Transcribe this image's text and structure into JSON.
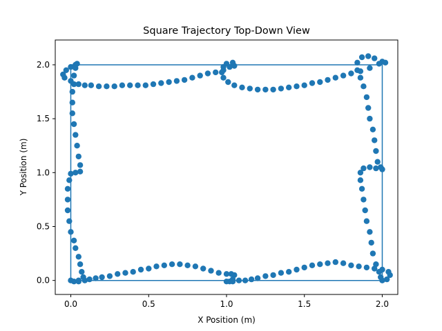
{
  "chart_data": {
    "type": "scatter",
    "title": "Square Trajectory Top-Down View",
    "xlabel": "X Position (m)",
    "ylabel": "Y Position (m)",
    "xlim": [
      -0.1,
      2.1
    ],
    "ylim": [
      -0.13,
      2.23
    ],
    "xticks": [
      "0.0",
      "0.5",
      "1.0",
      "1.5",
      "2.0"
    ],
    "yticks": [
      "0.0",
      "0.5",
      "1.0",
      "1.5",
      "2.0"
    ],
    "grid": false,
    "legend": "none",
    "colors": {
      "series": "#1f77b4",
      "axes": "#000000",
      "background": "#ffffff"
    },
    "reference_path": {
      "x": [
        0,
        2,
        2,
        0,
        0
      ],
      "y": [
        0,
        0,
        2,
        2,
        0
      ]
    },
    "points": [
      [
        0.0,
        0.0
      ],
      [
        0.02,
        -0.01
      ],
      [
        0.05,
        -0.01
      ],
      [
        0.09,
        0.0
      ],
      [
        0.12,
        0.01
      ],
      [
        0.16,
        0.02
      ],
      [
        0.2,
        0.03
      ],
      [
        0.25,
        0.04
      ],
      [
        0.3,
        0.06
      ],
      [
        0.35,
        0.07
      ],
      [
        0.4,
        0.08
      ],
      [
        0.45,
        0.1
      ],
      [
        0.5,
        0.11
      ],
      [
        0.55,
        0.13
      ],
      [
        0.6,
        0.14
      ],
      [
        0.65,
        0.15
      ],
      [
        0.7,
        0.15
      ],
      [
        0.75,
        0.14
      ],
      [
        0.8,
        0.13
      ],
      [
        0.85,
        0.11
      ],
      [
        0.9,
        0.09
      ],
      [
        0.95,
        0.07
      ],
      [
        1.0,
        0.06
      ],
      [
        1.03,
        0.06
      ],
      [
        1.05,
        0.05
      ],
      [
        1.04,
        0.01
      ],
      [
        1.02,
        -0.01
      ],
      [
        1.0,
        -0.01
      ],
      [
        1.04,
        -0.01
      ],
      [
        1.08,
        0.0
      ],
      [
        1.12,
        0.0
      ],
      [
        1.16,
        0.01
      ],
      [
        1.2,
        0.02
      ],
      [
        1.25,
        0.04
      ],
      [
        1.3,
        0.05
      ],
      [
        1.35,
        0.07
      ],
      [
        1.4,
        0.08
      ],
      [
        1.45,
        0.1
      ],
      [
        1.5,
        0.12
      ],
      [
        1.55,
        0.14
      ],
      [
        1.6,
        0.15
      ],
      [
        1.65,
        0.16
      ],
      [
        1.7,
        0.17
      ],
      [
        1.75,
        0.16
      ],
      [
        1.8,
        0.14
      ],
      [
        1.85,
        0.13
      ],
      [
        1.9,
        0.12
      ],
      [
        1.95,
        0.11
      ],
      [
        2.0,
        0.1
      ],
      [
        2.04,
        0.08
      ],
      [
        2.05,
        0.05
      ],
      [
        2.03,
        0.01
      ],
      [
        2.0,
        0.0
      ],
      [
        1.99,
        0.03
      ],
      [
        1.98,
        0.08
      ],
      [
        1.96,
        0.15
      ],
      [
        1.94,
        0.25
      ],
      [
        1.93,
        0.35
      ],
      [
        1.92,
        0.45
      ],
      [
        1.9,
        0.55
      ],
      [
        1.89,
        0.65
      ],
      [
        1.88,
        0.75
      ],
      [
        1.87,
        0.85
      ],
      [
        1.86,
        0.93
      ],
      [
        1.86,
        1.0
      ],
      [
        1.88,
        1.04
      ],
      [
        1.92,
        1.05
      ],
      [
        1.96,
        1.04
      ],
      [
        2.0,
        1.03
      ],
      [
        1.99,
        1.05
      ],
      [
        1.97,
        1.1
      ],
      [
        1.96,
        1.2
      ],
      [
        1.95,
        1.3
      ],
      [
        1.94,
        1.4
      ],
      [
        1.92,
        1.5
      ],
      [
        1.91,
        1.6
      ],
      [
        1.9,
        1.7
      ],
      [
        1.88,
        1.8
      ],
      [
        1.86,
        1.88
      ],
      [
        1.84,
        1.95
      ],
      [
        1.84,
        2.02
      ],
      [
        1.87,
        2.07
      ],
      [
        1.91,
        2.08
      ],
      [
        1.95,
        2.06
      ],
      [
        2.0,
        2.03
      ],
      [
        2.02,
        2.02
      ],
      [
        1.98,
        2.01
      ],
      [
        1.92,
        1.97
      ],
      [
        1.86,
        1.94
      ],
      [
        1.8,
        1.92
      ],
      [
        1.75,
        1.9
      ],
      [
        1.7,
        1.88
      ],
      [
        1.65,
        1.86
      ],
      [
        1.6,
        1.84
      ],
      [
        1.55,
        1.83
      ],
      [
        1.5,
        1.81
      ],
      [
        1.45,
        1.8
      ],
      [
        1.4,
        1.79
      ],
      [
        1.35,
        1.78
      ],
      [
        1.3,
        1.77
      ],
      [
        1.25,
        1.77
      ],
      [
        1.2,
        1.77
      ],
      [
        1.15,
        1.78
      ],
      [
        1.1,
        1.79
      ],
      [
        1.05,
        1.81
      ],
      [
        1.01,
        1.84
      ],
      [
        0.98,
        1.88
      ],
      [
        0.97,
        1.93
      ],
      [
        0.98,
        1.98
      ],
      [
        1.0,
        2.01
      ],
      [
        1.04,
        2.02
      ],
      [
        1.05,
        1.99
      ],
      [
        1.02,
        1.98
      ],
      [
        0.98,
        1.95
      ],
      [
        0.93,
        1.93
      ],
      [
        0.88,
        1.92
      ],
      [
        0.83,
        1.9
      ],
      [
        0.78,
        1.88
      ],
      [
        0.73,
        1.86
      ],
      [
        0.68,
        1.85
      ],
      [
        0.63,
        1.84
      ],
      [
        0.58,
        1.83
      ],
      [
        0.53,
        1.82
      ],
      [
        0.48,
        1.81
      ],
      [
        0.43,
        1.81
      ],
      [
        0.38,
        1.81
      ],
      [
        0.33,
        1.81
      ],
      [
        0.28,
        1.8
      ],
      [
        0.23,
        1.8
      ],
      [
        0.18,
        1.8
      ],
      [
        0.13,
        1.81
      ],
      [
        0.09,
        1.81
      ],
      [
        0.05,
        1.82
      ],
      [
        0.0,
        1.85
      ],
      [
        -0.04,
        1.88
      ],
      [
        -0.05,
        1.91
      ],
      [
        -0.03,
        1.95
      ],
      [
        0.0,
        1.98
      ],
      [
        0.03,
        2.0
      ],
      [
        0.04,
        2.01
      ],
      [
        0.03,
        1.97
      ],
      [
        0.02,
        1.9
      ],
      [
        0.02,
        1.82
      ],
      [
        0.01,
        1.75
      ],
      [
        0.01,
        1.65
      ],
      [
        0.01,
        1.55
      ],
      [
        0.02,
        1.45
      ],
      [
        0.03,
        1.35
      ],
      [
        0.04,
        1.25
      ],
      [
        0.05,
        1.15
      ],
      [
        0.06,
        1.07
      ],
      [
        0.06,
        1.01
      ],
      [
        0.03,
        1.0
      ],
      [
        0.0,
        0.99
      ],
      [
        -0.01,
        0.93
      ],
      [
        -0.02,
        0.85
      ],
      [
        -0.02,
        0.75
      ],
      [
        -0.02,
        0.65
      ],
      [
        -0.01,
        0.55
      ],
      [
        0.0,
        0.45
      ],
      [
        0.02,
        0.37
      ],
      [
        0.03,
        0.3
      ],
      [
        0.05,
        0.22
      ],
      [
        0.06,
        0.15
      ],
      [
        0.07,
        0.08
      ],
      [
        0.08,
        0.03
      ],
      [
        0.05,
        0.0
      ]
    ]
  }
}
